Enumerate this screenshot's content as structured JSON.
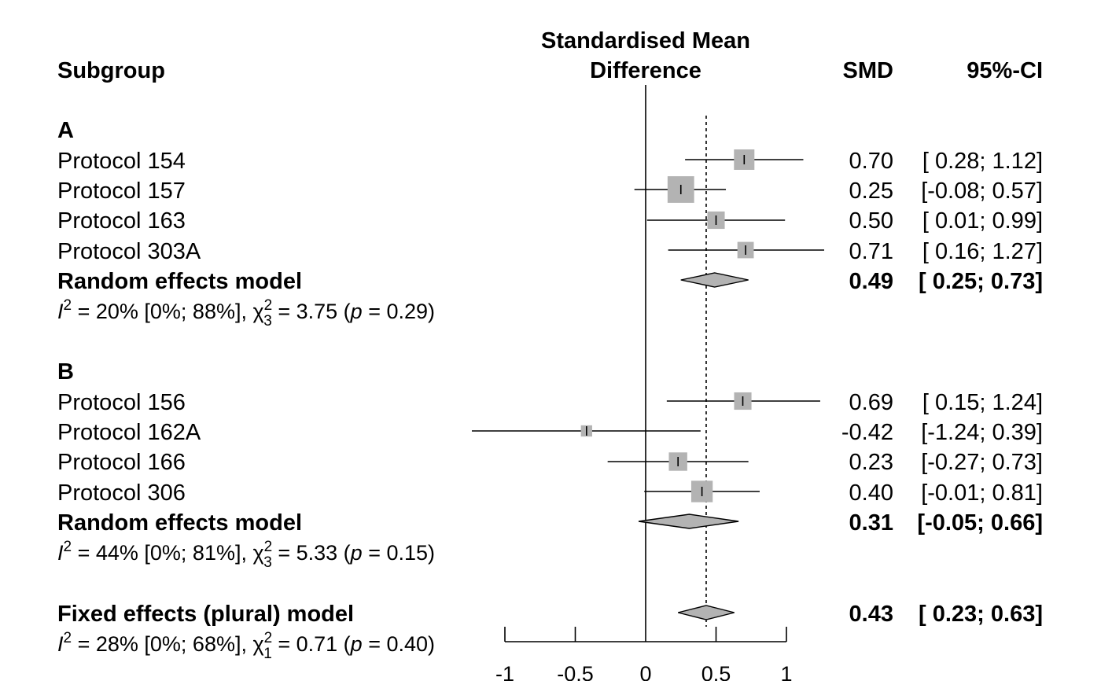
{
  "chart_data": {
    "type": "forest",
    "title": "Standardised Mean Difference",
    "header": {
      "left": "Subgroup",
      "axis_line1": "Standardised Mean",
      "axis_line2": "Difference",
      "smd": "SMD",
      "ci": "95%-CI"
    },
    "xlim": [
      -1,
      1
    ],
    "xticks": [
      -1,
      -0.5,
      0,
      0.5,
      1
    ],
    "xtick_labels": [
      "-1",
      "-0.5",
      "0",
      "0.5",
      "1"
    ],
    "reference_line": 0,
    "overall_line": 0.43,
    "subgroups": [
      {
        "name": "A",
        "studies": [
          {
            "label": "Protocol 154",
            "smd": 0.7,
            "lower": 0.28,
            "upper": 1.12,
            "weight": 1.0,
            "smd_text": "0.70",
            "ci_text": "[ 0.28; 1.12]"
          },
          {
            "label": "Protocol 157",
            "smd": 0.25,
            "lower": -0.08,
            "upper": 0.57,
            "weight": 1.3,
            "smd_text": "0.25",
            "ci_text": "[-0.08; 0.57]"
          },
          {
            "label": "Protocol 163",
            "smd": 0.5,
            "lower": 0.01,
            "upper": 0.99,
            "weight": 0.85,
            "smd_text": "0.50",
            "ci_text": "[ 0.01; 0.99]"
          },
          {
            "label": "Protocol 303A",
            "smd": 0.71,
            "lower": 0.16,
            "upper": 1.27,
            "weight": 0.8,
            "smd_text": "0.71",
            "ci_text": "[ 0.16; 1.27]"
          }
        ],
        "model": {
          "label": "Random effects model",
          "smd": 0.49,
          "lower": 0.25,
          "upper": 0.73,
          "smd_text": "0.49",
          "ci_text": "[ 0.25; 0.73]"
        },
        "heterogeneity": {
          "i2_text": " = 20% [0%; 88%], ",
          "df": "3",
          "chi_text": " = 3.75 (",
          "p_text": " = 0.29)"
        }
      },
      {
        "name": "B",
        "studies": [
          {
            "label": "Protocol 156",
            "smd": 0.69,
            "lower": 0.15,
            "upper": 1.24,
            "weight": 0.85,
            "smd_text": "0.69",
            "ci_text": "[ 0.15; 1.24]"
          },
          {
            "label": "Protocol 162A",
            "smd": -0.42,
            "lower": -1.24,
            "upper": 0.39,
            "weight": 0.55,
            "smd_text": "-0.42",
            "ci_text": "[-1.24; 0.39]"
          },
          {
            "label": "Protocol 166",
            "smd": 0.23,
            "lower": -0.27,
            "upper": 0.73,
            "weight": 0.9,
            "smd_text": "0.23",
            "ci_text": "[-0.27; 0.73]"
          },
          {
            "label": "Protocol 306",
            "smd": 0.4,
            "lower": -0.01,
            "upper": 0.81,
            "weight": 1.05,
            "smd_text": "0.40",
            "ci_text": "[-0.01; 0.81]"
          }
        ],
        "model": {
          "label": "Random effects model",
          "smd": 0.31,
          "lower": -0.05,
          "upper": 0.66,
          "smd_text": "0.31",
          "ci_text": "[-0.05; 0.66]"
        },
        "heterogeneity": {
          "i2_text": " = 44% [0%; 81%], ",
          "df": "3",
          "chi_text": " = 5.33 (",
          "p_text": " = 0.15)"
        }
      }
    ],
    "overall": {
      "label": "Fixed effects (plural) model",
      "smd": 0.43,
      "lower": 0.23,
      "upper": 0.63,
      "smd_text": "0.43",
      "ci_text": "[ 0.23; 0.63]",
      "heterogeneity": {
        "i2_text": " = 28% [0%; 68%], ",
        "df": "1",
        "chi_text": " = 0.71 (",
        "p_text": " = 0.40)"
      }
    },
    "symbols": {
      "i": "I",
      "two": "2",
      "chi": "χ",
      "p": "p"
    },
    "colors": {
      "box": "#b3b3b3",
      "diamond": "#b3b3b3",
      "line": "#000000"
    }
  }
}
